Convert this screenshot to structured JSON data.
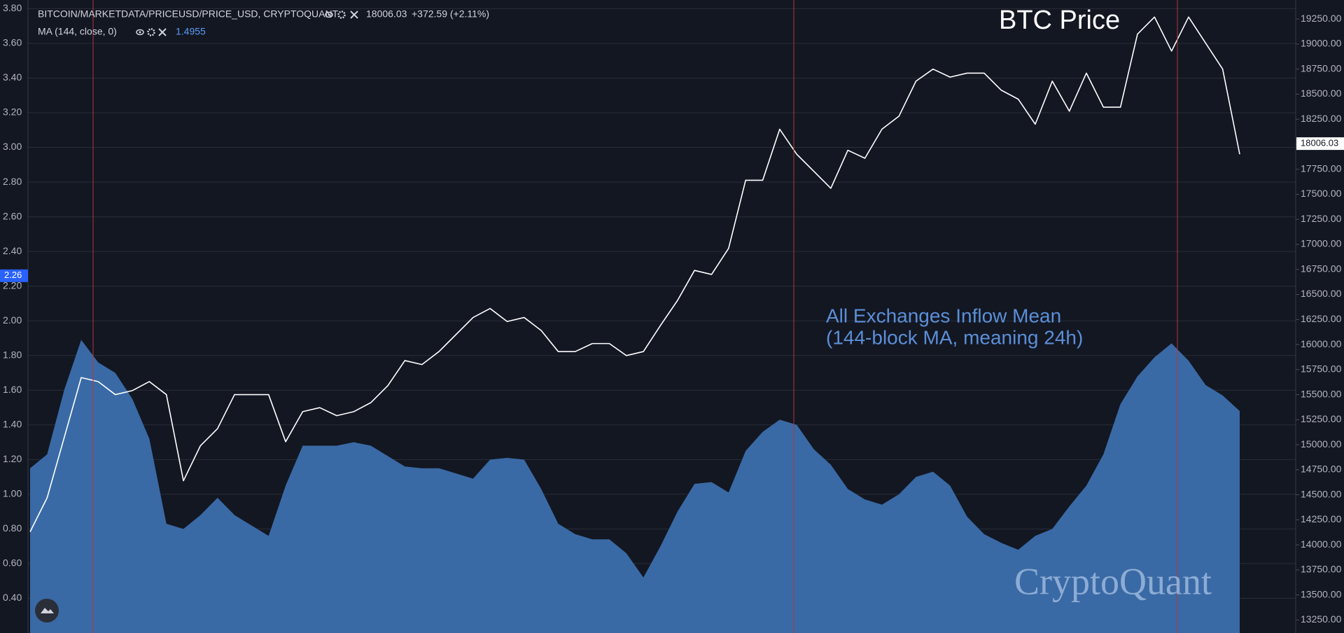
{
  "chart_data": {
    "type": "area-line",
    "series": [
      {
        "name": "BITCOIN/MARKETDATA/PRICEUSD/PRICE_USD, CRYPTOQUANT",
        "type": "line",
        "axis": "y2",
        "color": "#ffffff",
        "last": 18006.03,
        "change": "+372.59 (+2.11%)",
        "values": [
          14130,
          14470,
          15070,
          15670,
          15630,
          15500,
          15540,
          15630,
          15500,
          14640,
          14990,
          15160,
          15500,
          15500,
          15500,
          15030,
          15330,
          15370,
          15290,
          15330,
          15420,
          15590,
          15840,
          15800,
          15930,
          16100,
          16270,
          16360,
          16230,
          16270,
          16140,
          15930,
          15930,
          16010,
          16010,
          15890,
          15930,
          16190,
          16440,
          16740,
          16700,
          16960,
          17640,
          17640,
          18150,
          17900,
          17730,
          17560,
          17940,
          17860,
          18150,
          18280,
          18630,
          18750,
          18670,
          18710,
          18710,
          18540,
          18450,
          18200,
          18630,
          18330,
          18710,
          18370,
          18370,
          19100,
          19270,
          18930,
          19270,
          19010,
          18750,
          17900
        ]
      },
      {
        "name": "MA (144, close, 0)",
        "type": "area",
        "color": "#3a6aa5",
        "last": 1.4955,
        "values": [
          1.15,
          1.23,
          1.6,
          1.89,
          1.76,
          1.7,
          1.55,
          1.32,
          0.83,
          0.8,
          0.88,
          0.98,
          0.88,
          0.82,
          0.76,
          1.05,
          1.28,
          1.28,
          1.28,
          1.3,
          1.28,
          1.22,
          1.16,
          1.15,
          1.15,
          1.12,
          1.09,
          1.2,
          1.21,
          1.2,
          1.03,
          0.83,
          0.77,
          0.74,
          0.74,
          0.66,
          0.52,
          0.7,
          0.9,
          1.06,
          1.07,
          1.01,
          1.25,
          1.36,
          1.43,
          1.4,
          1.26,
          1.17,
          1.03,
          0.97,
          0.94,
          1.0,
          1.1,
          1.13,
          1.05,
          0.87,
          0.77,
          0.72,
          0.68,
          0.76,
          0.8,
          0.93,
          1.05,
          1.23,
          1.52,
          1.68,
          1.79,
          1.87,
          1.77,
          1.63,
          1.57,
          1.48
        ]
      }
    ],
    "ylim": [
      0.2,
      3.85
    ],
    "yticks": [
      {
        "value": 0.4,
        "label": "0.40"
      },
      {
        "value": 0.6,
        "label": "0.60"
      },
      {
        "value": 0.8,
        "label": "0.80"
      },
      {
        "value": 1.0,
        "label": "1.00"
      },
      {
        "value": 1.2,
        "label": "1.20"
      },
      {
        "value": 1.4,
        "label": "1.40"
      },
      {
        "value": 1.6,
        "label": "1.60"
      },
      {
        "value": 1.8,
        "label": "1.80"
      },
      {
        "value": 2.0,
        "label": "2.00"
      },
      {
        "value": 2.2,
        "label": "2.20"
      },
      {
        "value": 2.4,
        "label": "2.40"
      },
      {
        "value": 2.6,
        "label": "2.60"
      },
      {
        "value": 2.8,
        "label": "2.80"
      },
      {
        "value": 3.0,
        "label": "3.00"
      },
      {
        "value": 3.2,
        "label": "3.20"
      },
      {
        "value": 3.4,
        "label": "3.40"
      },
      {
        "value": 3.6,
        "label": "3.60"
      },
      {
        "value": 3.8,
        "label": "3.80"
      }
    ],
    "y2lim": [
      13120,
      19440
    ],
    "y2ticks": [
      {
        "value": 13250,
        "label": "13250.00"
      },
      {
        "value": 13500,
        "label": "13500.00"
      },
      {
        "value": 13750,
        "label": "13750.00"
      },
      {
        "value": 14000,
        "label": "14000.00"
      },
      {
        "value": 14250,
        "label": "14250.00"
      },
      {
        "value": 14500,
        "label": "14500.00"
      },
      {
        "value": 14750,
        "label": "14750.00"
      },
      {
        "value": 15000,
        "label": "15000.00"
      },
      {
        "value": 15250,
        "label": "15250.00"
      },
      {
        "value": 15500,
        "label": "15500.00"
      },
      {
        "value": 15750,
        "label": "15750.00"
      },
      {
        "value": 16000,
        "label": "16000.00"
      },
      {
        "value": 16250,
        "label": "16250.00"
      },
      {
        "value": 16500,
        "label": "16500.00"
      },
      {
        "value": 16750,
        "label": "16750.00"
      },
      {
        "value": 17000,
        "label": "17000.00"
      },
      {
        "value": 17250,
        "label": "17250.00"
      },
      {
        "value": 17500,
        "label": "17500.00"
      },
      {
        "value": 17750,
        "label": "17750.00"
      },
      {
        "value": 18000,
        "label": "18000.00"
      },
      {
        "value": 18250,
        "label": "18250.00"
      },
      {
        "value": 18500,
        "label": "18500.00"
      },
      {
        "value": 18750,
        "label": "18750.00"
      },
      {
        "value": 19000,
        "label": "19000.00"
      },
      {
        "value": 19250,
        "label": "19250.00"
      }
    ],
    "grid": true,
    "cursor_value": 2.26,
    "annotations": [
      "BTC Price",
      "All Exchanges Inflow Mean",
      "(144-block MA, meaning 24h)"
    ],
    "watermark": "CryptoQuant"
  }
}
